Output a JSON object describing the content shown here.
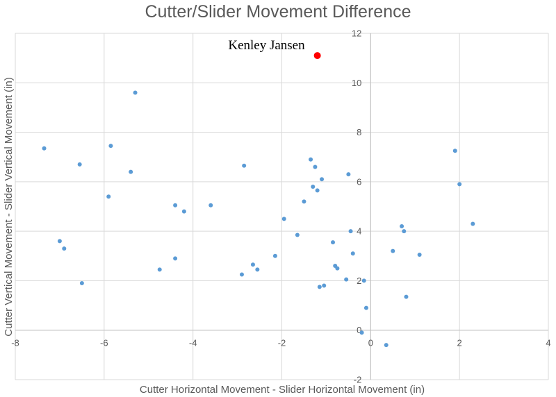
{
  "chart_data": {
    "type": "scatter",
    "title": "Cutter/Slider Movement Difference",
    "xlabel": "Cutter Horizontal Movement - Slider Horizontal Movement (in)",
    "ylabel": "Cutter Vertical Movement - Slider Vertical Movement (in)",
    "xlim": [
      -8,
      4
    ],
    "ylim": [
      -2,
      12
    ],
    "xticks": [
      "-8",
      "-6",
      "-4",
      "-2",
      "0",
      "2",
      "4"
    ],
    "yticks": [
      "-2",
      "0",
      "2",
      "4",
      "6",
      "8",
      "10",
      "12"
    ],
    "grid": true,
    "point_color": "#5b9bd5",
    "highlight_color": "#ff0000",
    "series": [
      {
        "points": [
          {
            "x": -7.35,
            "y": 7.35
          },
          {
            "x": -6.55,
            "y": 6.7
          },
          {
            "x": -5.85,
            "y": 7.45
          },
          {
            "x": -5.3,
            "y": 9.6
          },
          {
            "x": -5.4,
            "y": 6.4
          },
          {
            "x": -5.9,
            "y": 5.4
          },
          {
            "x": -7.0,
            "y": 3.6
          },
          {
            "x": -6.9,
            "y": 3.3
          },
          {
            "x": -6.5,
            "y": 1.9
          },
          {
            "x": -4.4,
            "y": 5.05
          },
          {
            "x": -4.2,
            "y": 4.8
          },
          {
            "x": -3.6,
            "y": 5.05
          },
          {
            "x": -4.4,
            "y": 2.9
          },
          {
            "x": -4.75,
            "y": 2.45
          },
          {
            "x": -2.85,
            "y": 6.65
          },
          {
            "x": -2.65,
            "y": 2.65
          },
          {
            "x": -2.55,
            "y": 2.45
          },
          {
            "x": -2.9,
            "y": 2.25
          },
          {
            "x": -2.15,
            "y": 3.0
          },
          {
            "x": -1.95,
            "y": 4.5
          },
          {
            "x": -1.65,
            "y": 3.85
          },
          {
            "x": -1.5,
            "y": 5.2
          },
          {
            "x": -1.35,
            "y": 6.9
          },
          {
            "x": -1.25,
            "y": 6.6
          },
          {
            "x": -1.1,
            "y": 6.1
          },
          {
            "x": -1.3,
            "y": 5.8
          },
          {
            "x": -1.2,
            "y": 5.65
          },
          {
            "x": -0.5,
            "y": 6.3
          },
          {
            "x": -0.45,
            "y": 4.0
          },
          {
            "x": -0.85,
            "y": 3.55
          },
          {
            "x": -0.4,
            "y": 3.1
          },
          {
            "x": -0.8,
            "y": 2.6
          },
          {
            "x": -0.75,
            "y": 2.5
          },
          {
            "x": -0.55,
            "y": 2.05
          },
          {
            "x": -0.15,
            "y": 2.0
          },
          {
            "x": -1.05,
            "y": 1.8
          },
          {
            "x": -1.15,
            "y": 1.75
          },
          {
            "x": -0.1,
            "y": 0.9
          },
          {
            "x": -0.2,
            "y": -0.1
          },
          {
            "x": 0.35,
            "y": -0.6
          },
          {
            "x": 0.5,
            "y": 3.2
          },
          {
            "x": 0.7,
            "y": 4.2
          },
          {
            "x": 0.75,
            "y": 4.0
          },
          {
            "x": 1.1,
            "y": 3.05
          },
          {
            "x": 0.8,
            "y": 1.35
          },
          {
            "x": 1.9,
            "y": 7.25
          },
          {
            "x": 2.0,
            "y": 5.9
          },
          {
            "x": 2.3,
            "y": 4.3
          }
        ]
      }
    ],
    "highlight": {
      "label": "Kenley Jansen",
      "x": -1.2,
      "y": 11.1
    }
  }
}
